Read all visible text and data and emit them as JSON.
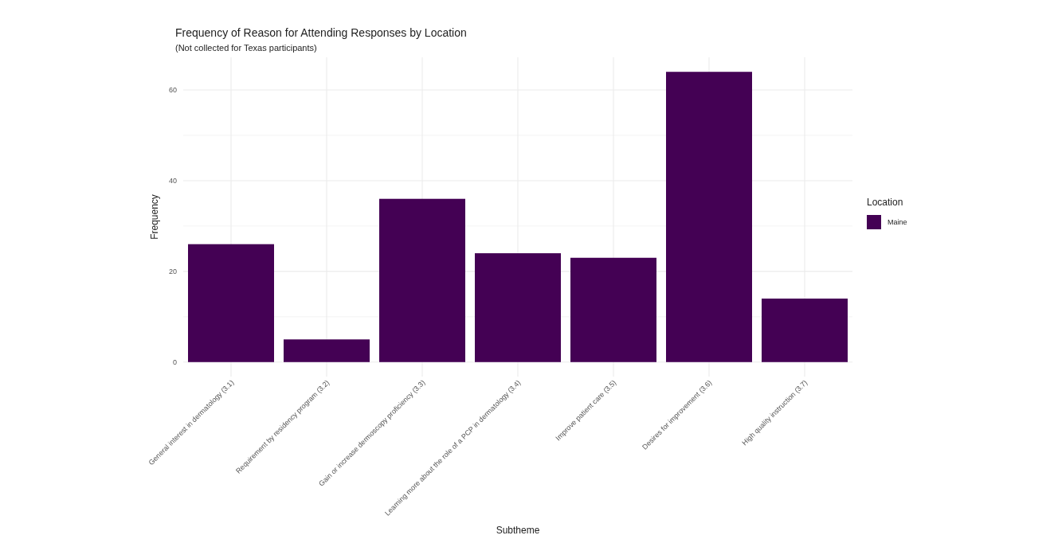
{
  "chart_data": {
    "type": "bar",
    "title": "Frequency of Reason for Attending Responses by Location",
    "subtitle": "(Not collected for Texas participants)",
    "xlabel": "Subtheme",
    "ylabel": "Frequency",
    "legend_title": "Location",
    "categories": [
      "General interest in dermatology (3.1)",
      "Requirement by residency program (3.2)",
      "Gain or increase dermoscopy proficiency (3.3)",
      "Learning more about the role of a PCP in dermatology (3.4)",
      "Improve patient care (3.5)",
      "Desires for improvement (3.6)",
      "High quality instruction (3.7)"
    ],
    "series": [
      {
        "name": "Maine",
        "color": "#440154",
        "values": [
          26,
          5,
          36,
          24,
          23,
          64,
          14
        ]
      }
    ],
    "ylim": [
      -3.2,
      67.2
    ],
    "yticks": [
      0,
      {
        "value": 10,
        "label": null
      },
      20,
      {
        "value": 30,
        "label": null
      },
      40,
      {
        "value": 50,
        "label": null
      },
      60
    ],
    "grid": true,
    "legend": "right"
  }
}
